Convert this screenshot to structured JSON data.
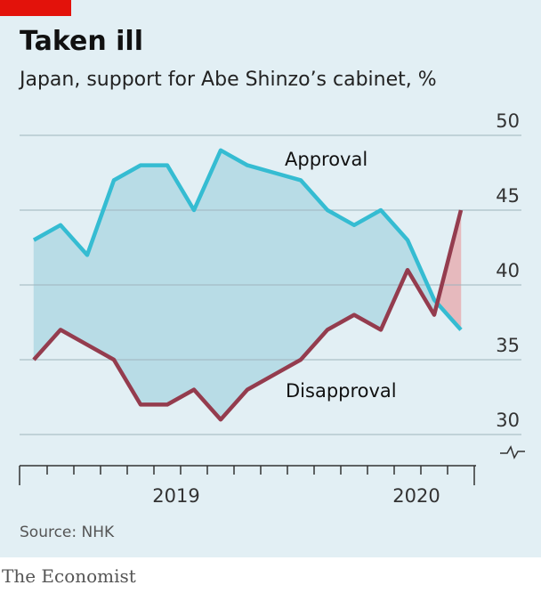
{
  "chart_data": {
    "type": "line",
    "title": "Taken ill",
    "subtitle": "Japan, support for Abe Shinzo’s cabinet, %",
    "source": "Source: NHK",
    "brand": "The Economist",
    "categories": [
      null,
      null,
      null,
      null,
      null,
      "2019",
      null,
      null,
      null,
      null,
      null,
      null,
      null,
      null,
      "2020",
      null,
      null
    ],
    "series": [
      {
        "name": "Approval",
        "color": "#35bcd2",
        "values": [
          43,
          44,
          42,
          47,
          48,
          48,
          45,
          49,
          48,
          47.5,
          47,
          45,
          44,
          45,
          43,
          39,
          37
        ]
      },
      {
        "name": "Disapproval",
        "color": "#943c4e",
        "values": [
          35,
          37,
          36,
          35,
          32,
          32,
          33,
          31,
          33,
          34,
          35,
          37,
          38,
          37,
          41,
          38,
          45
        ]
      }
    ],
    "ylim": [
      30,
      50
    ],
    "yticks": [
      30,
      35,
      40,
      45,
      50
    ],
    "grid": true
  }
}
